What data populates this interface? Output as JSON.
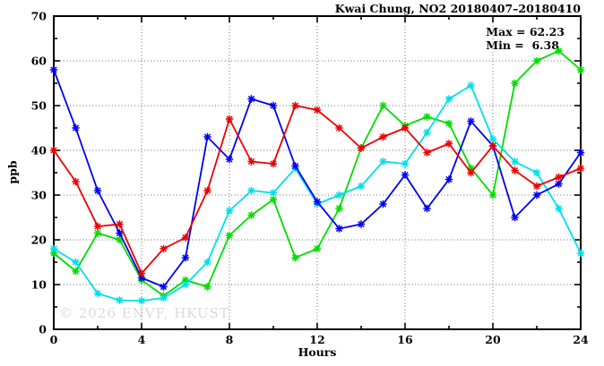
{
  "title": "Kwai Chung, NO2 20180407–20180410",
  "annotations": {
    "max_label": "Max = 62.23",
    "min_label": "Min =  6.38"
  },
  "watermark": "© 2026 ENVF, HKUST",
  "chart_data": {
    "type": "line",
    "title": "Kwai Chung, NO2 20180407–20180410",
    "xlabel": "Hours",
    "ylabel": "ppb",
    "xlim": [
      0,
      24
    ],
    "ylim": [
      0,
      70
    ],
    "xticks_major": [
      0,
      4,
      8,
      12,
      16,
      20,
      24
    ],
    "xtick_minor_step": 2,
    "yticks_major": [
      0,
      10,
      20,
      30,
      40,
      50,
      60,
      70
    ],
    "ytick_minor_step": 5,
    "grid": true,
    "legend_position": "none",
    "max_value": 62.23,
    "min_value": 6.38,
    "marker": "star",
    "x": [
      0,
      1,
      2,
      3,
      4,
      5,
      6,
      7,
      8,
      9,
      10,
      11,
      12,
      13,
      14,
      15,
      16,
      17,
      18,
      19,
      20,
      21,
      22,
      23,
      24
    ],
    "series": [
      {
        "name": "green-line",
        "color": "#00dd00",
        "values": [
          17,
          13,
          21.5,
          20,
          11,
          7.5,
          11,
          9.5,
          21,
          25.5,
          29,
          16,
          18,
          27,
          40.5,
          50,
          45.5,
          47.5,
          46,
          36,
          30,
          55,
          60,
          62.23,
          58
        ]
      },
      {
        "name": "cyan-line",
        "color": "#00e0e8",
        "values": [
          18,
          15,
          8,
          6.5,
          6.38,
          7,
          10,
          15,
          26.5,
          31,
          30.5,
          36,
          28,
          30,
          32,
          37.5,
          37,
          44,
          51.5,
          54.5,
          42.5,
          37.5,
          35,
          27,
          17
        ]
      },
      {
        "name": "blue-line",
        "color": "#0000f0",
        "values": [
          58,
          45,
          31,
          21.5,
          11.5,
          9.5,
          16,
          43,
          38,
          51.5,
          50,
          36.5,
          28.5,
          22.5,
          23.5,
          28,
          34.5,
          27,
          33.5,
          46.5,
          41,
          25,
          30,
          32.5,
          39.5
        ]
      },
      {
        "name": "red-line",
        "color": "#ee0000",
        "values": [
          40,
          33,
          23,
          23.5,
          12.5,
          18,
          20.5,
          31,
          47,
          37.5,
          37,
          50,
          49,
          45,
          40.5,
          43,
          45,
          39.5,
          41.5,
          35,
          41,
          35.5,
          32,
          34,
          36
        ]
      }
    ]
  }
}
